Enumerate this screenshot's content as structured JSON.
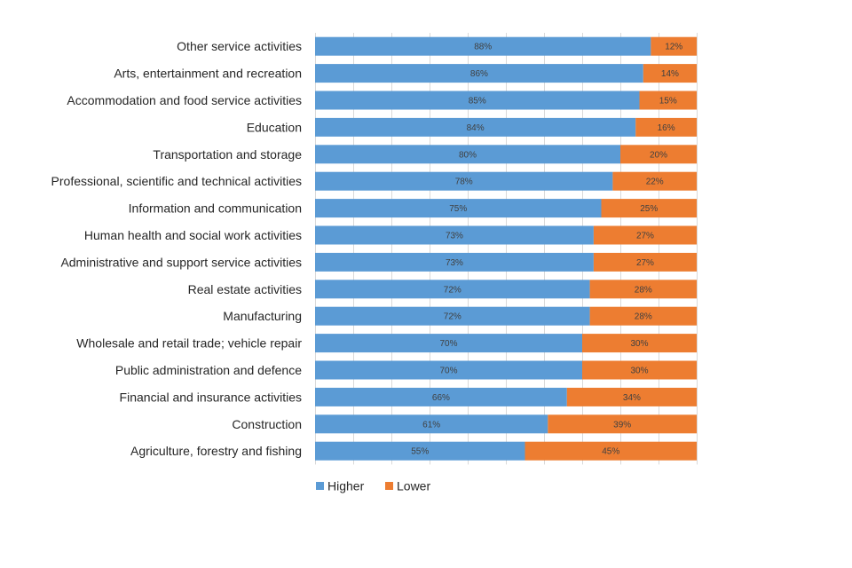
{
  "chart_data": {
    "type": "bar",
    "orientation": "horizontal",
    "stacked": true,
    "percent_stacked": true,
    "title": "",
    "xlabel": "",
    "ylabel": "",
    "xlim": [
      0,
      100
    ],
    "grid": true,
    "legend_position": "bottom-center",
    "categories": [
      "Other service activities",
      "Arts, entertainment and recreation",
      "Accommodation and food service activities",
      "Education",
      "Transportation and storage",
      "Professional, scientific and technical activities",
      "Information and communication",
      "Human health and social work activities",
      "Administrative and support service activities",
      "Real estate activities",
      "Manufacturing",
      "Wholesale and retail trade; vehicle repair",
      "Public administration and defence",
      "Financial and insurance activities",
      "Construction",
      "Agriculture, forestry and fishing"
    ],
    "series": [
      {
        "name": "Higher",
        "color": "#5b9bd5",
        "values": [
          88,
          86,
          85,
          84,
          80,
          78,
          75,
          73,
          73,
          72,
          72,
          70,
          70,
          66,
          61,
          55
        ],
        "labels": [
          "88%",
          "86%",
          "85%",
          "84%",
          "80%",
          "78%",
          "75%",
          "73%",
          "73%",
          "72%",
          "72%",
          "70%",
          "70%",
          "66%",
          "61%",
          "55%"
        ]
      },
      {
        "name": "Lower",
        "color": "#ed7d31",
        "values": [
          12,
          14,
          15,
          16,
          20,
          22,
          25,
          27,
          27,
          28,
          28,
          30,
          30,
          34,
          39,
          45
        ],
        "labels": [
          "12%",
          "14%",
          "15%",
          "16%",
          "20%",
          "22%",
          "25%",
          "27%",
          "27%",
          "28%",
          "28%",
          "30%",
          "30%",
          "34%",
          "39%",
          "45%"
        ]
      }
    ]
  }
}
